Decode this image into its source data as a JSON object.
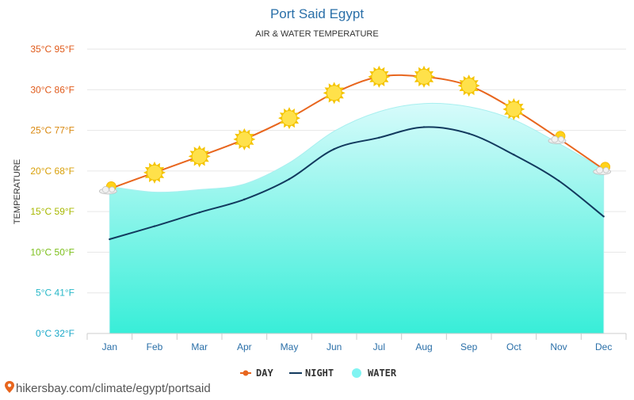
{
  "chart_data": {
    "type": "line",
    "title": "Port Said Egypt",
    "subtitle": "AIR & WATER TEMPERATURE",
    "ylabel": "TEMPERATURE",
    "ylim": [
      0,
      35
    ],
    "y_ticks": [
      {
        "value": 35,
        "label": "35°C 95°F",
        "color": "#e05a1a"
      },
      {
        "value": 30,
        "label": "30°C 86°F",
        "color": "#e05a1a"
      },
      {
        "value": 25,
        "label": "25°C 77°F",
        "color": "#d9880f"
      },
      {
        "value": 20,
        "label": "20°C 68°F",
        "color": "#d9a00a"
      },
      {
        "value": 15,
        "label": "15°C 59°F",
        "color": "#a8b800"
      },
      {
        "value": 10,
        "label": "10°C 50°F",
        "color": "#7cbf1a"
      },
      {
        "value": 5,
        "label": "5°C 41°F",
        "color": "#28b8c8"
      },
      {
        "value": 0,
        "label": "0°C 32°F",
        "color": "#1aa8c8"
      }
    ],
    "categories": [
      "Jan",
      "Feb",
      "Mar",
      "Apr",
      "May",
      "Jun",
      "Jul",
      "Aug",
      "Sep",
      "Oct",
      "Nov",
      "Dec"
    ],
    "series": [
      {
        "name": "DAY",
        "values": [
          17.8,
          19.8,
          21.8,
          23.9,
          26.5,
          29.6,
          31.6,
          31.6,
          30.5,
          27.6,
          24.0,
          20.2
        ],
        "color": "#e8661e"
      },
      {
        "name": "NIGHT",
        "values": [
          11.6,
          13.2,
          14.9,
          16.5,
          19.0,
          22.7,
          24.1,
          25.4,
          24.6,
          22.0,
          18.8,
          14.4
        ],
        "color": "#123a5e"
      },
      {
        "name": "WATER",
        "values": [
          18.1,
          17.4,
          17.7,
          18.4,
          21.0,
          24.9,
          27.3,
          28.3,
          27.9,
          26.3,
          23.4,
          20.2
        ],
        "color": "#80f4f2"
      }
    ],
    "weather_icons": [
      "partly-cloudy-icon",
      "sun-icon",
      "sun-icon",
      "sun-icon",
      "sun-icon",
      "sun-icon",
      "sun-icon",
      "sun-icon",
      "sun-icon",
      "sun-icon",
      "partly-cloudy-icon",
      "partly-cloudy-icon"
    ],
    "grid": true,
    "legend_position": "bottom-center"
  },
  "source": "hikersbay.com/climate/egypt/portsaid"
}
